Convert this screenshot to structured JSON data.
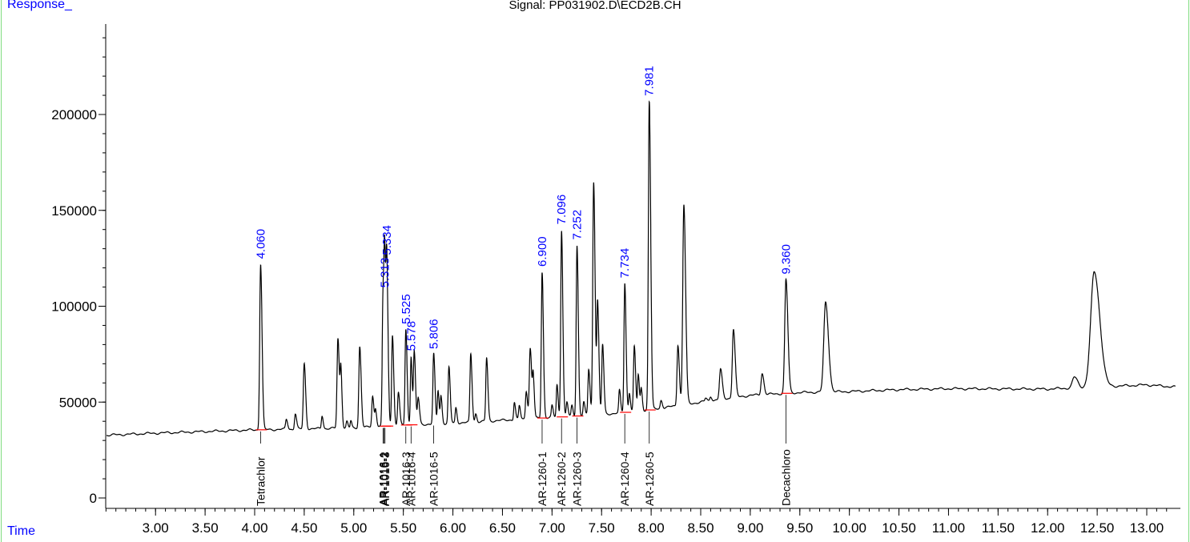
{
  "header": {
    "title": "Signal: PP031902.D\\ECD2B.CH",
    "y_axis_corner_label": "Response_",
    "x_axis_corner_label": "Time"
  },
  "colors": {
    "accent_label": "#0000ff",
    "trace": "#000000",
    "baseline_marker": "#ff0000",
    "frame_border": "#7fdc7f"
  },
  "chart_data": {
    "type": "line",
    "title": "Signal: PP031902.D\\ECD2B.CH",
    "xlabel": "Time",
    "ylabel": "Response_",
    "xlim": [
      2.4,
      13.3
    ],
    "ylim": [
      -5000,
      250000
    ],
    "x_ticks": [
      3.0,
      3.5,
      4.0,
      4.5,
      5.0,
      5.5,
      6.0,
      6.5,
      7.0,
      7.5,
      8.0,
      8.5,
      9.0,
      9.5,
      10.0,
      10.5,
      11.0,
      11.5,
      12.0,
      12.5,
      13.0
    ],
    "x_tick_labels": [
      "3.00",
      "3.50",
      "4.00",
      "4.50",
      "5.00",
      "5.50",
      "6.00",
      "6.50",
      "7.00",
      "7.50",
      "8.00",
      "8.50",
      "9.00",
      "9.50",
      "10.00",
      "10.50",
      "11.00",
      "11.50",
      "12.00",
      "12.50",
      "13.00"
    ],
    "y_ticks": [
      0,
      50000,
      100000,
      150000,
      200000
    ],
    "y_tick_labels": [
      "0",
      "50000",
      "100000",
      "150000",
      "200000"
    ],
    "grid": false,
    "baseline": [
      [
        2.4,
        32500
      ],
      [
        3.0,
        33800
      ],
      [
        4.0,
        35500
      ],
      [
        5.0,
        36500
      ],
      [
        5.5,
        38000
      ],
      [
        6.0,
        39000
      ],
      [
        6.5,
        40500
      ],
      [
        7.0,
        42000
      ],
      [
        7.5,
        43500
      ],
      [
        8.0,
        46000
      ],
      [
        8.5,
        50000
      ],
      [
        9.0,
        53500
      ],
      [
        9.5,
        55000
      ],
      [
        10.0,
        55500
      ],
      [
        10.5,
        56500
      ],
      [
        11.0,
        57000
      ],
      [
        12.0,
        56800
      ],
      [
        12.3,
        57500
      ],
      [
        13.0,
        59000
      ],
      [
        13.3,
        57800
      ]
    ],
    "peaks": [
      {
        "x": 4.06,
        "y": 122000,
        "w": 0.009
      },
      {
        "x": 4.32,
        "y": 41000,
        "w": 0.008
      },
      {
        "x": 4.41,
        "y": 44000,
        "w": 0.008
      },
      {
        "x": 4.5,
        "y": 70000,
        "w": 0.009
      },
      {
        "x": 4.68,
        "y": 43000,
        "w": 0.007
      },
      {
        "x": 4.84,
        "y": 83000,
        "w": 0.009
      },
      {
        "x": 4.87,
        "y": 65000,
        "w": 0.007
      },
      {
        "x": 4.93,
        "y": 40000,
        "w": 0.007
      },
      {
        "x": 4.97,
        "y": 40000,
        "w": 0.006
      },
      {
        "x": 5.06,
        "y": 79000,
        "w": 0.009
      },
      {
        "x": 5.19,
        "y": 53000,
        "w": 0.008
      },
      {
        "x": 5.22,
        "y": 46000,
        "w": 0.007
      },
      {
        "x": 5.295,
        "y": 105000,
        "w": 0.008
      },
      {
        "x": 5.313,
        "y": 107000,
        "w": 0.008
      },
      {
        "x": 5.334,
        "y": 110000,
        "w": 0.008
      },
      {
        "x": 5.39,
        "y": 85000,
        "w": 0.008
      },
      {
        "x": 5.45,
        "y": 55000,
        "w": 0.008
      },
      {
        "x": 5.525,
        "y": 88000,
        "w": 0.008
      },
      {
        "x": 5.578,
        "y": 74000,
        "w": 0.007
      },
      {
        "x": 5.61,
        "y": 76000,
        "w": 0.008
      },
      {
        "x": 5.65,
        "y": 52000,
        "w": 0.008
      },
      {
        "x": 5.806,
        "y": 75000,
        "w": 0.008
      },
      {
        "x": 5.85,
        "y": 56000,
        "w": 0.007
      },
      {
        "x": 5.88,
        "y": 53000,
        "w": 0.007
      },
      {
        "x": 5.96,
        "y": 68000,
        "w": 0.008
      },
      {
        "x": 6.03,
        "y": 47000,
        "w": 0.007
      },
      {
        "x": 6.18,
        "y": 75000,
        "w": 0.008
      },
      {
        "x": 6.23,
        "y": 44000,
        "w": 0.007
      },
      {
        "x": 6.34,
        "y": 73000,
        "w": 0.008
      },
      {
        "x": 6.62,
        "y": 50000,
        "w": 0.007
      },
      {
        "x": 6.67,
        "y": 48000,
        "w": 0.007
      },
      {
        "x": 6.74,
        "y": 56000,
        "w": 0.008
      },
      {
        "x": 6.78,
        "y": 78000,
        "w": 0.009
      },
      {
        "x": 6.81,
        "y": 62000,
        "w": 0.007
      },
      {
        "x": 6.9,
        "y": 118000,
        "w": 0.008
      },
      {
        "x": 7.0,
        "y": 48000,
        "w": 0.007
      },
      {
        "x": 7.05,
        "y": 59000,
        "w": 0.007
      },
      {
        "x": 7.096,
        "y": 140000,
        "w": 0.008
      },
      {
        "x": 7.15,
        "y": 50000,
        "w": 0.007
      },
      {
        "x": 7.2,
        "y": 48000,
        "w": 0.007
      },
      {
        "x": 7.252,
        "y": 132000,
        "w": 0.008
      },
      {
        "x": 7.32,
        "y": 50000,
        "w": 0.007
      },
      {
        "x": 7.37,
        "y": 67000,
        "w": 0.008
      },
      {
        "x": 7.42,
        "y": 165000,
        "w": 0.009
      },
      {
        "x": 7.46,
        "y": 101000,
        "w": 0.008
      },
      {
        "x": 7.51,
        "y": 80000,
        "w": 0.008
      },
      {
        "x": 7.68,
        "y": 56000,
        "w": 0.007
      },
      {
        "x": 7.734,
        "y": 112000,
        "w": 0.008
      },
      {
        "x": 7.78,
        "y": 55000,
        "w": 0.007
      },
      {
        "x": 7.83,
        "y": 79000,
        "w": 0.008
      },
      {
        "x": 7.87,
        "y": 64000,
        "w": 0.007
      },
      {
        "x": 7.9,
        "y": 57000,
        "w": 0.007
      },
      {
        "x": 7.981,
        "y": 207000,
        "w": 0.009
      },
      {
        "x": 8.1,
        "y": 51000,
        "w": 0.008
      },
      {
        "x": 8.27,
        "y": 80000,
        "w": 0.009
      },
      {
        "x": 8.33,
        "y": 153000,
        "w": 0.011
      },
      {
        "x": 8.55,
        "y": 52000,
        "w": 0.008
      },
      {
        "x": 8.6,
        "y": 53000,
        "w": 0.008
      },
      {
        "x": 8.7,
        "y": 67000,
        "w": 0.011
      },
      {
        "x": 8.83,
        "y": 88000,
        "w": 0.011
      },
      {
        "x": 9.12,
        "y": 65000,
        "w": 0.011
      },
      {
        "x": 9.36,
        "y": 114000,
        "w": 0.012
      },
      {
        "x": 9.76,
        "y": 102000,
        "w": 0.018
      },
      {
        "x": 12.27,
        "y": 63000,
        "w": 0.02
      },
      {
        "x": 12.47,
        "y": 118000,
        "w": 0.035
      }
    ],
    "peak_labels": [
      {
        "rt": 4.06,
        "text": "4.060",
        "y": 123000
      },
      {
        "rt": 5.313,
        "text": "5.313",
        "y": 108000
      },
      {
        "rt": 5.334,
        "text": "5.334",
        "y": 125000
      },
      {
        "rt": 5.525,
        "text": "5.525",
        "y": 89000
      },
      {
        "rt": 5.578,
        "text": "5.578",
        "y": 75000
      },
      {
        "rt": 5.806,
        "text": "5.806",
        "y": 76000
      },
      {
        "rt": 6.9,
        "text": "6.900",
        "y": 119000
      },
      {
        "rt": 7.096,
        "text": "7.096",
        "y": 141000
      },
      {
        "rt": 7.252,
        "text": "7.252",
        "y": 133000
      },
      {
        "rt": 7.734,
        "text": "7.734",
        "y": 113000
      },
      {
        "rt": 7.981,
        "text": "7.981",
        "y": 208000
      },
      {
        "rt": 9.36,
        "text": "9.360",
        "y": 115000
      }
    ],
    "compound_labels": [
      {
        "rt": 4.06,
        "text": "Tetrachlor"
      },
      {
        "rt": 5.295,
        "text": "AR-1016-1"
      },
      {
        "rt": 5.305,
        "text": "AR-1016-2"
      },
      {
        "rt": 5.315,
        "text": "AR-1016-3"
      },
      {
        "rt": 5.525,
        "text": "AR-1016-3"
      },
      {
        "rt": 5.578,
        "text": "AR-1016-4"
      },
      {
        "rt": 5.806,
        "text": "AR-1016-5"
      },
      {
        "rt": 6.9,
        "text": "AR-1260-1"
      },
      {
        "rt": 7.096,
        "text": "AR-1260-2"
      },
      {
        "rt": 7.252,
        "text": "AR-1260-3"
      },
      {
        "rt": 7.734,
        "text": "AR-1260-4"
      },
      {
        "rt": 7.981,
        "text": "AR-1260-5"
      },
      {
        "rt": 9.36,
        "text": "Decachloro"
      }
    ],
    "integration_marks": [
      4.06,
      5.313,
      5.334,
      5.525,
      5.578,
      6.9,
      7.096,
      7.252,
      7.734,
      7.981,
      9.36
    ]
  }
}
